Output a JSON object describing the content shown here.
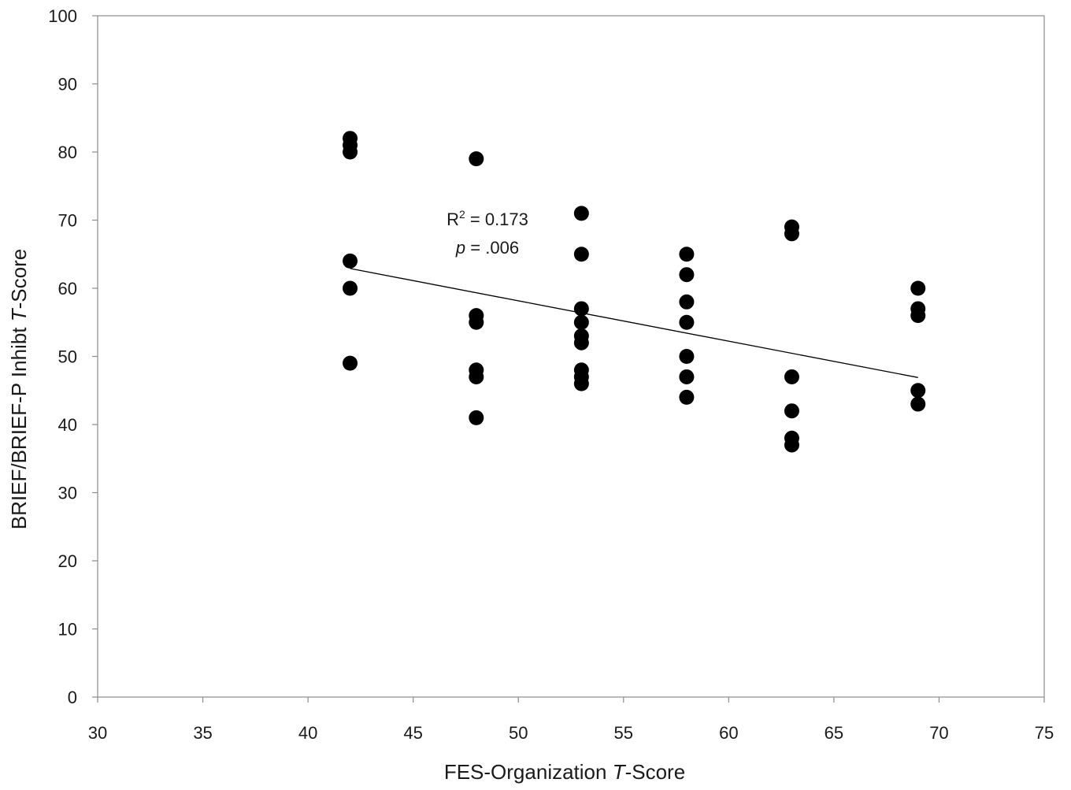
{
  "chart_data": {
    "type": "scatter",
    "xlabel": {
      "prefix": "FES-Organization ",
      "italic": "T",
      "suffix": "-Score"
    },
    "ylabel": {
      "prefix": "BRIEF/BRIEF-P Inhibt ",
      "italic": "T",
      "suffix": "-Score"
    },
    "xlim": [
      30,
      75
    ],
    "ylim": [
      0,
      100
    ],
    "x_ticks": [
      "30",
      "35",
      "40",
      "45",
      "50",
      "55",
      "60",
      "65",
      "70",
      "75"
    ],
    "y_ticks": [
      "0",
      "10",
      "20",
      "30",
      "40",
      "50",
      "60",
      "70",
      "80",
      "90",
      "100"
    ],
    "grid": false,
    "series": [
      {
        "marker_color": "#000000",
        "points": [
          {
            "x": 42,
            "y": 82
          },
          {
            "x": 42,
            "y": 81
          },
          {
            "x": 42,
            "y": 80
          },
          {
            "x": 42,
            "y": 64
          },
          {
            "x": 42,
            "y": 60
          },
          {
            "x": 42,
            "y": 49
          },
          {
            "x": 48,
            "y": 79
          },
          {
            "x": 48,
            "y": 56
          },
          {
            "x": 48,
            "y": 55
          },
          {
            "x": 48,
            "y": 48
          },
          {
            "x": 48,
            "y": 47
          },
          {
            "x": 48,
            "y": 41
          },
          {
            "x": 53,
            "y": 71
          },
          {
            "x": 53,
            "y": 65
          },
          {
            "x": 53,
            "y": 57
          },
          {
            "x": 53,
            "y": 55
          },
          {
            "x": 53,
            "y": 53
          },
          {
            "x": 53,
            "y": 52
          },
          {
            "x": 53,
            "y": 48
          },
          {
            "x": 53,
            "y": 47
          },
          {
            "x": 53,
            "y": 46
          },
          {
            "x": 58,
            "y": 65
          },
          {
            "x": 58,
            "y": 62
          },
          {
            "x": 58,
            "y": 58
          },
          {
            "x": 58,
            "y": 55
          },
          {
            "x": 58,
            "y": 50
          },
          {
            "x": 58,
            "y": 47
          },
          {
            "x": 58,
            "y": 44
          },
          {
            "x": 63,
            "y": 69
          },
          {
            "x": 63,
            "y": 68
          },
          {
            "x": 63,
            "y": 47
          },
          {
            "x": 63,
            "y": 42
          },
          {
            "x": 63,
            "y": 38
          },
          {
            "x": 63,
            "y": 37
          },
          {
            "x": 69,
            "y": 60
          },
          {
            "x": 69,
            "y": 57
          },
          {
            "x": 69,
            "y": 56
          },
          {
            "x": 69,
            "y": 45
          },
          {
            "x": 69,
            "y": 43
          }
        ]
      }
    ],
    "trendline": {
      "type": "linear",
      "x_start": 42,
      "y_start": 62.9,
      "x_end": 69,
      "y_end": 46.9
    },
    "annotations": {
      "r_squared": {
        "prefix": "R",
        "sup": "2",
        "value": " = 0.173"
      },
      "p_value": {
        "italic": "p",
        "value": " = .006"
      }
    }
  }
}
